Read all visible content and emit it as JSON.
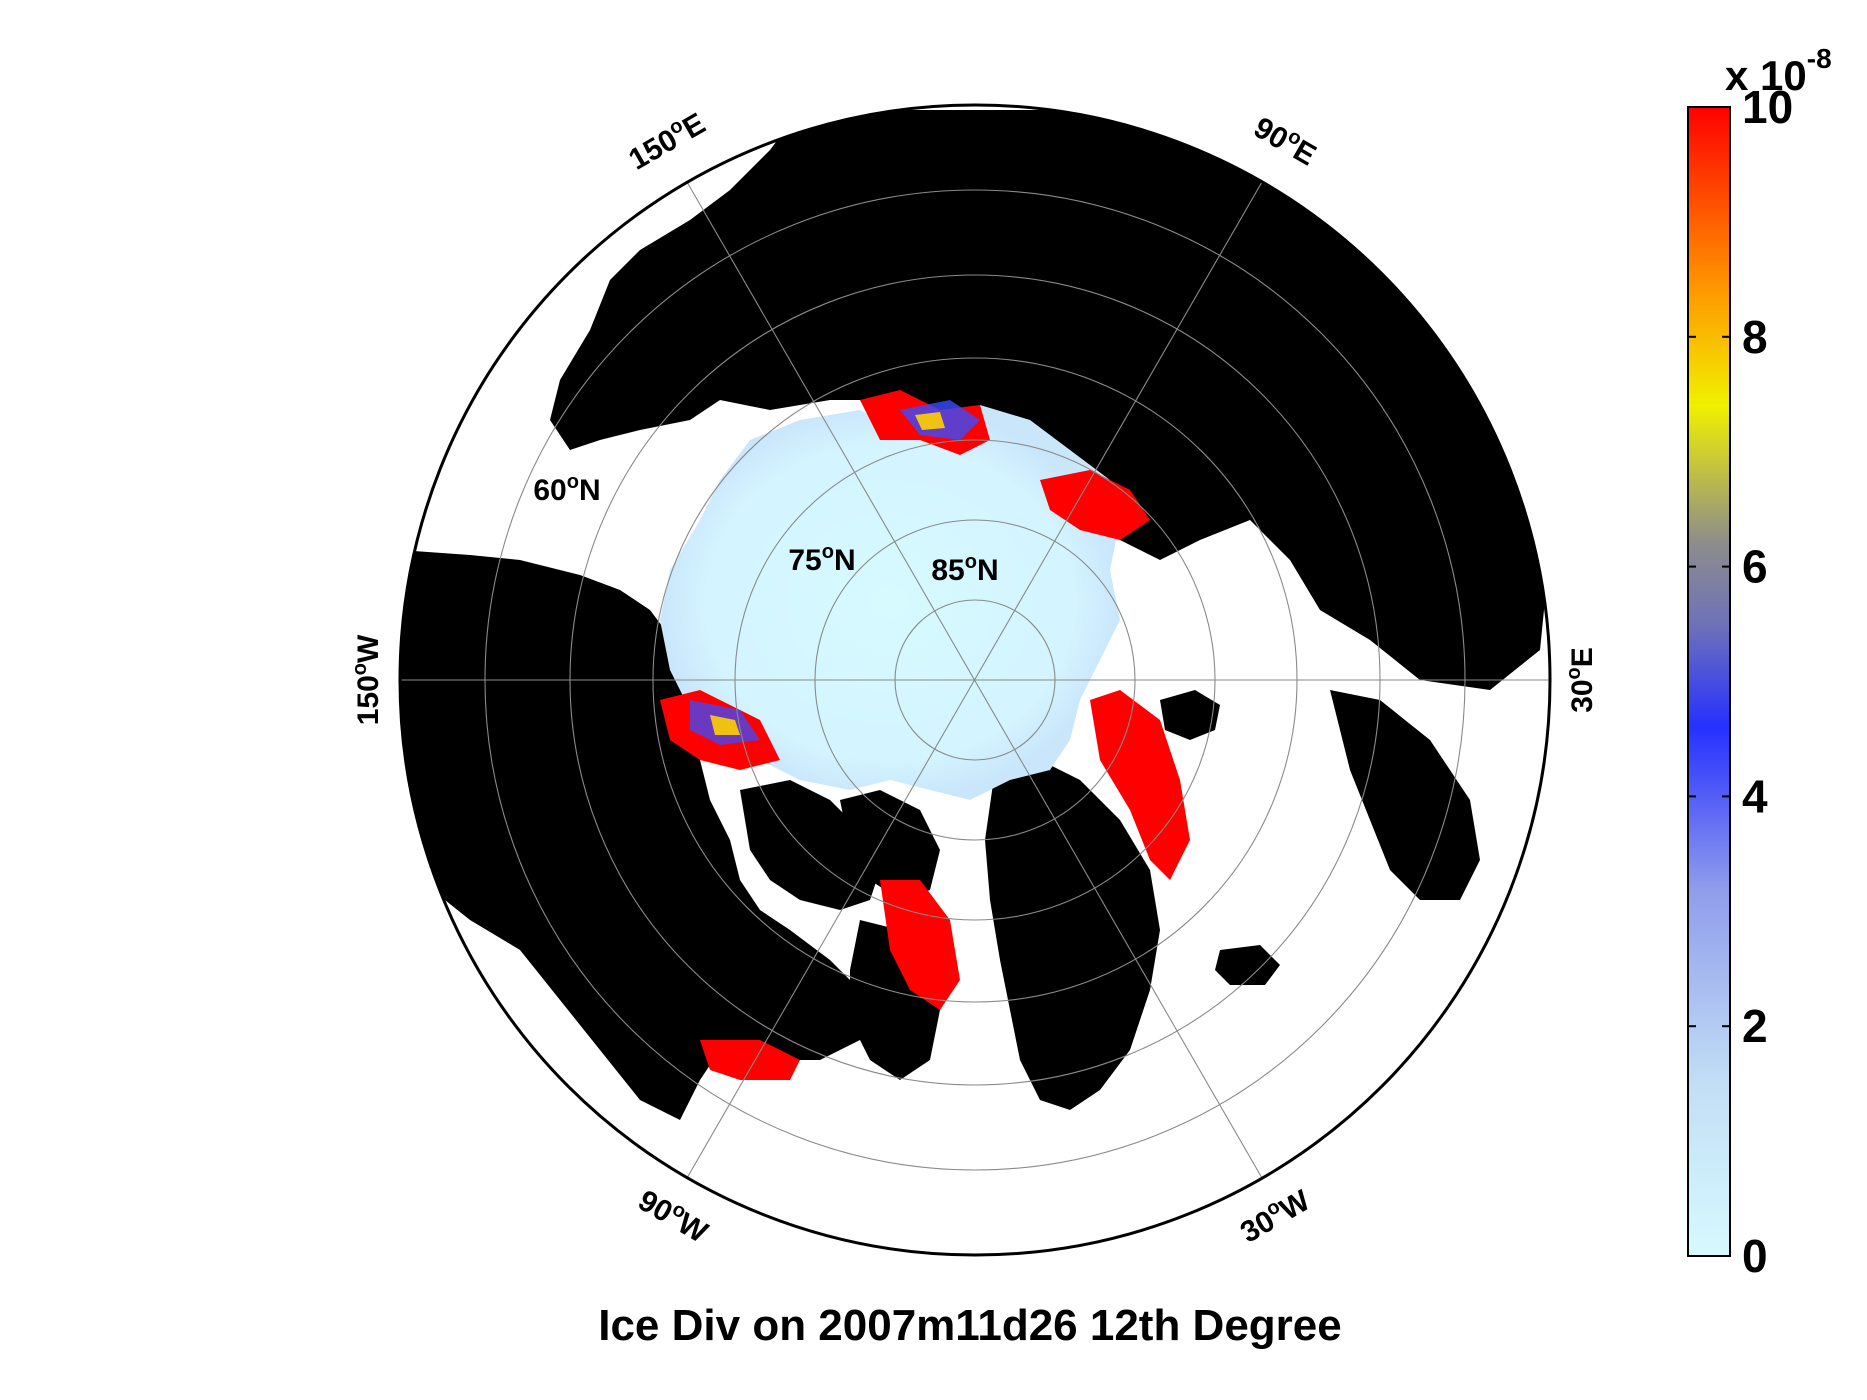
{
  "figure": {
    "title": "Ice Div on 2007m11d26 12th Degree",
    "lon_labels": [
      {
        "text": "150",
        "sup": "o",
        "suffix": "E"
      },
      {
        "text": "90",
        "sup": "o",
        "suffix": "E"
      },
      {
        "text": "150",
        "sup": "o",
        "suffix": "W"
      },
      {
        "text": "30",
        "sup": "o",
        "suffix": "E"
      },
      {
        "text": "90",
        "sup": "o",
        "suffix": "W"
      },
      {
        "text": "30",
        "sup": "o",
        "suffix": "W"
      }
    ],
    "lat_labels": [
      {
        "text": "60",
        "sup": "o",
        "suffix": "N"
      },
      {
        "text": "75",
        "sup": "o",
        "suffix": "N"
      },
      {
        "text": "85",
        "sup": "o",
        "suffix": "N"
      }
    ]
  },
  "colorbar": {
    "multiplier_base": "x 10",
    "multiplier_exp": "-8",
    "min": 0,
    "max": 10,
    "ticks": [
      "0",
      "2",
      "4",
      "6",
      "8",
      "10"
    ],
    "colors": [
      "#d6faff",
      "#b3ccf0",
      "#6d7ee8",
      "#2630ff",
      "#8c8c8c",
      "#e8e020",
      "#ff9900",
      "#ff0000"
    ]
  },
  "colors": {
    "land": "#000000",
    "open_water": "#ffffff",
    "ice_low": "#d6faff",
    "ice_high": "#ff0000"
  }
}
